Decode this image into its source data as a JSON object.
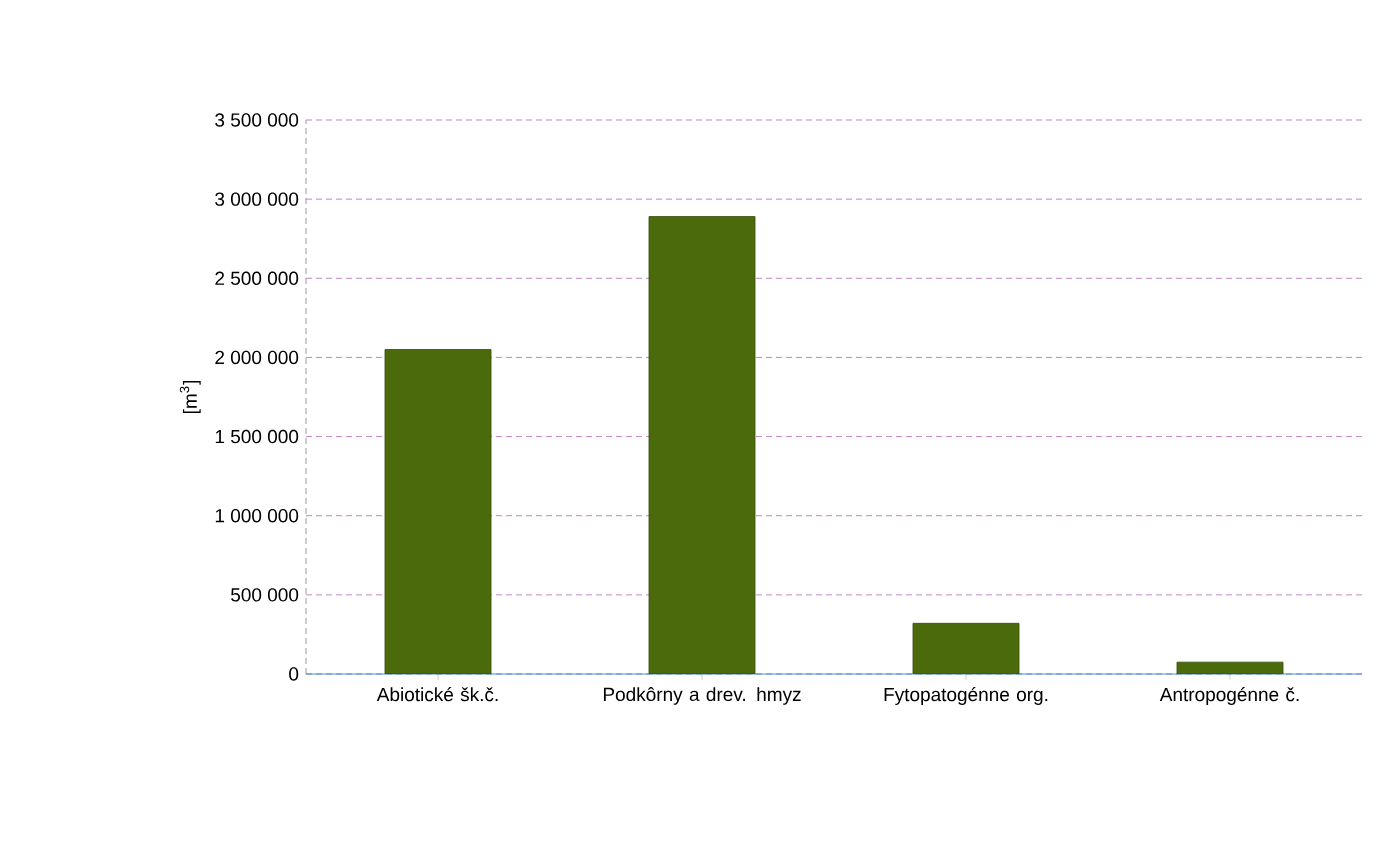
{
  "chart_data": {
    "type": "bar",
    "ylabel": "[m$^{3}$]",
    "categories": [
      "Abiotické šk.č.",
      "Podkôrny a drev. hmyz",
      "Fytopatogénne org.",
      "Antropogénne č."
    ],
    "values": [
      2050000,
      2890000,
      320000,
      75000
    ],
    "color": "#4a6a0c",
    "ylim": [
      0,
      3500000
    ],
    "yticks": [
      0,
      {
        "value": 500000,
        "label": "500 000"
      },
      {
        "value": 1000000,
        "label": "1 000 000"
      },
      {
        "value": 1500000,
        "label": "1 500 000"
      },
      {
        "value": 2000000,
        "label": "2 000 000"
      },
      {
        "value": 2500000,
        "label": "2 500 000"
      },
      {
        "value": 3000000,
        "label": "3 000 000"
      },
      {
        "value": 3500000,
        "label": "3 500 000"
      }
    ],
    "grid": "y"
  }
}
